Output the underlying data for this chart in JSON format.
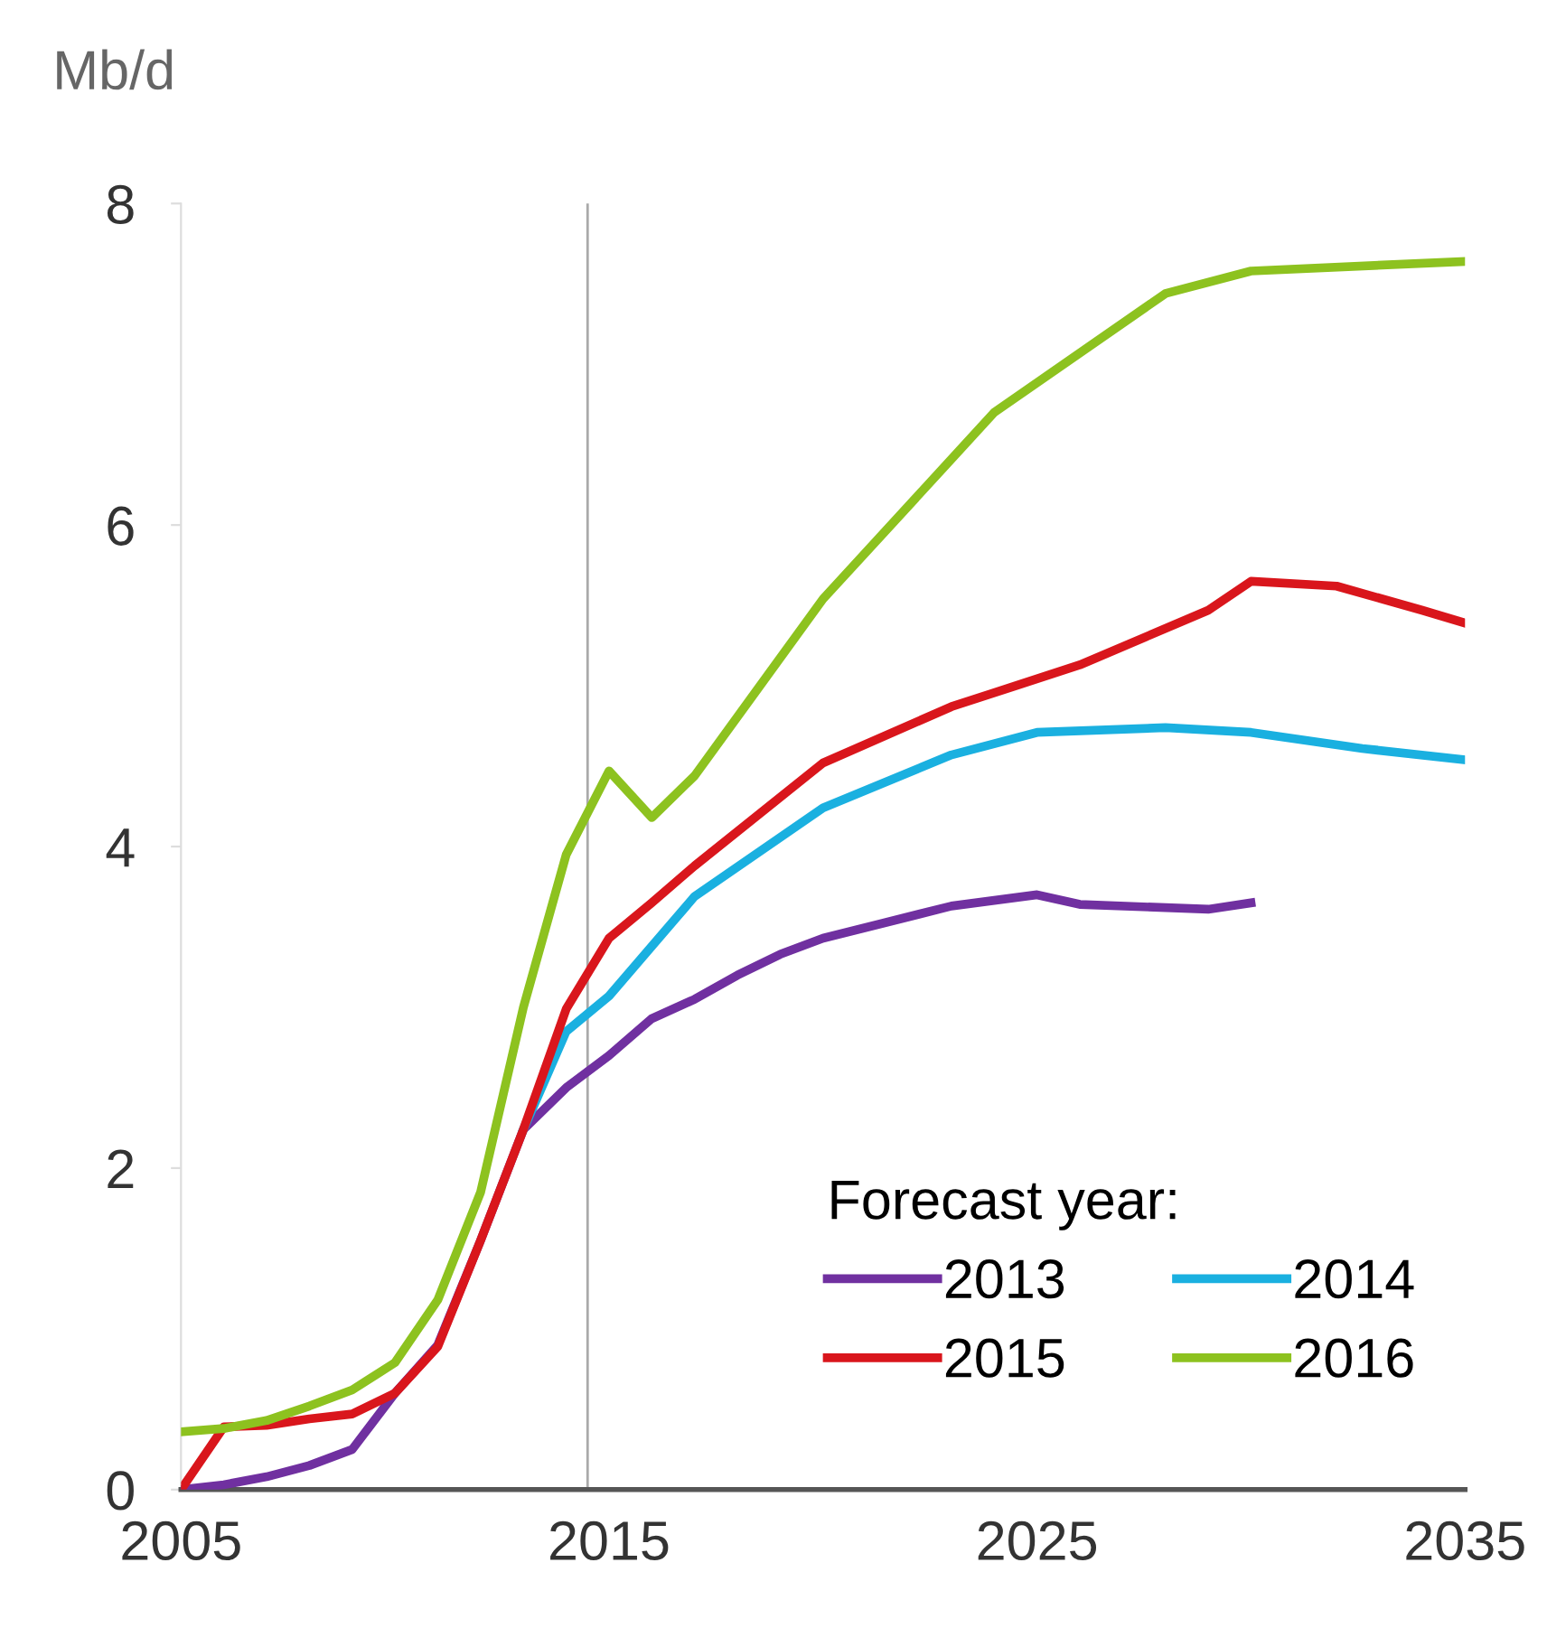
{
  "chart_data": {
    "type": "line",
    "ylabel": "Mb/d",
    "legend_title": "Forecast year:",
    "legend": "bottom right",
    "grid": false,
    "marker": "none",
    "line_style": "solid",
    "xlim": [
      2005,
      2035
    ],
    "xticks": [
      2005,
      2015,
      2025,
      2035
    ],
    "ylim": [
      0,
      8
    ],
    "yticks": [
      0,
      2,
      4,
      6,
      8
    ],
    "ref_lines": [
      {
        "axis": "x",
        "value": 2014.5,
        "label": null,
        "color": "#aaaaaa"
      }
    ],
    "series": [
      {
        "name": "2013",
        "color": "#7030a0",
        "x": [
          2005,
          2006,
          2007,
          2008,
          2009,
          2010,
          2011,
          2012,
          2013,
          2014,
          2015,
          2016,
          2017,
          2018,
          2019,
          2020,
          2023,
          2025,
          2026,
          2029,
          2030
        ],
        "values": [
          0,
          0.03,
          0.08,
          0.15,
          0.25,
          0.6,
          0.9,
          1.55,
          2.24,
          2.5,
          2.7,
          2.93,
          3.05,
          3.2,
          3.33,
          3.43,
          3.63,
          3.7,
          3.64,
          3.61,
          3.65
        ]
      },
      {
        "name": "2014",
        "color": "#1ab0e0",
        "x": [
          2013,
          2014,
          2015,
          2017,
          2020,
          2023,
          2025,
          2028,
          2030,
          2032.6,
          2035
        ],
        "values": [
          2.24,
          2.85,
          3.07,
          3.69,
          4.24,
          4.57,
          4.71,
          4.74,
          4.71,
          4.61,
          4.54
        ]
      },
      {
        "name": "2015",
        "color": "#d9161c",
        "x": [
          2005,
          2006,
          2007,
          2008,
          2009,
          2010,
          2011,
          2012,
          2013,
          2014,
          2015,
          2016,
          2017,
          2020,
          2023,
          2026,
          2029,
          2030,
          2032,
          2034,
          2035
        ],
        "values": [
          0,
          0.39,
          0.4,
          0.44,
          0.47,
          0.6,
          0.89,
          1.55,
          2.24,
          2.99,
          3.43,
          3.65,
          3.88,
          4.52,
          4.87,
          5.13,
          5.47,
          5.65,
          5.62,
          5.47,
          5.39
        ]
      },
      {
        "name": "2016",
        "color": "#8dc21f",
        "x": [
          2005,
          2006,
          2007,
          2008,
          2009,
          2010,
          2011,
          2012,
          2013,
          2014,
          2015,
          2016,
          2017,
          2020,
          2024,
          2028,
          2030,
          2035
        ],
        "values": [
          0.36,
          0.38,
          0.43,
          0.52,
          0.62,
          0.79,
          1.18,
          1.85,
          3.0,
          3.95,
          4.47,
          4.18,
          4.44,
          5.54,
          6.7,
          7.44,
          7.58,
          7.64
        ]
      }
    ]
  }
}
